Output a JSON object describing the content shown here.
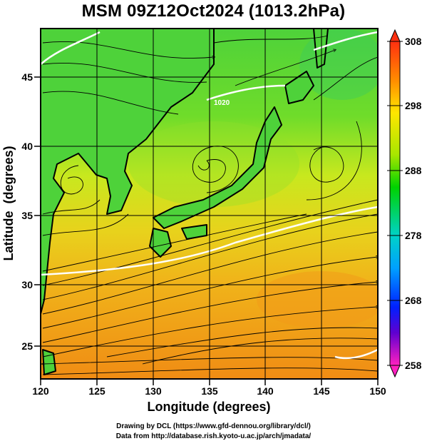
{
  "title": "MSM 09Z12Oct2024 (1013.2hPa)",
  "xlabel": "Longitude (degrees)",
  "ylabel": "Latitude  (degrees)",
  "x_ticks": [
    "120",
    "125",
    "130",
    "135",
    "140",
    "145",
    "150"
  ],
  "y_ticks": [
    "25",
    "30",
    "35",
    "40",
    "45"
  ],
  "colorbar_ticks": [
    "308",
    "298",
    "288",
    "278",
    "268",
    "258"
  ],
  "credits": {
    "line1": "Drawing by DCL (https://www.gfd-dennou.org/library/dcl/)",
    "line2": "Data from http://database.rish.kyoto-u.ac.jp/arch/jmadata/"
  },
  "contour_labels": [
    "1020"
  ],
  "colors": {
    "cold": "#ff00cc",
    "cool": "#0000ff",
    "mid_cool": "#00c8ff",
    "mid": "#00d200",
    "warm": "#ffff00",
    "hot": "#ff4000"
  }
}
